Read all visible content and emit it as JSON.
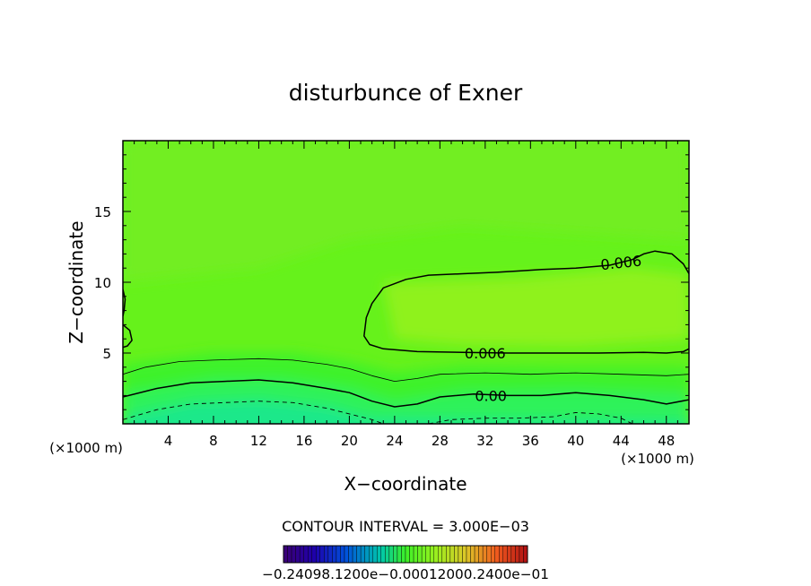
{
  "chart_data": {
    "type": "contour",
    "title": "disturbunce of Exner",
    "xlabel": "X−coordinate",
    "ylabel": "Z−coordinate",
    "x_unit_left": "(×1000 m)",
    "x_unit_right": "(×1000 m)",
    "xlim": [
      0,
      50
    ],
    "ylim": [
      0,
      20
    ],
    "x_ticks": [
      4,
      8,
      12,
      16,
      20,
      24,
      28,
      32,
      36,
      40,
      44,
      48
    ],
    "y_ticks": [
      5,
      10,
      15
    ],
    "grid": false,
    "contour_interval_text": "CONTOUR INTERVAL = 3.000E−03",
    "contour_interval": 0.003,
    "contour_labels": [
      {
        "text": "0.006",
        "x": 44.0,
        "y": 11.4
      },
      {
        "text": "0.006",
        "x": 32.0,
        "y": 5.0
      },
      {
        "text": "0.00",
        "x": 32.5,
        "y": 2.0
      }
    ],
    "contours": [
      {
        "level": 0.006,
        "style": "solid",
        "points": [
          [
            50,
            10.6
          ],
          [
            49.5,
            11.3
          ],
          [
            48.5,
            12.0
          ],
          [
            47,
            12.2
          ],
          [
            46,
            12.0
          ],
          [
            45,
            11.6
          ],
          [
            43,
            11.2
          ],
          [
            40,
            11.0
          ],
          [
            37,
            10.9
          ],
          [
            35,
            10.8
          ],
          [
            33,
            10.7
          ],
          [
            30,
            10.6
          ],
          [
            27,
            10.5
          ],
          [
            25,
            10.2
          ],
          [
            23,
            9.6
          ],
          [
            22,
            8.5
          ],
          [
            21.5,
            7.5
          ],
          [
            21.3,
            6.2
          ],
          [
            21.8,
            5.6
          ],
          [
            23,
            5.3
          ],
          [
            26,
            5.1
          ],
          [
            30,
            5.05
          ],
          [
            34,
            5.0
          ],
          [
            38,
            5.0
          ],
          [
            42,
            5.0
          ],
          [
            46,
            5.05
          ],
          [
            48,
            5.0
          ],
          [
            49.5,
            5.1
          ],
          [
            50,
            5.3
          ]
        ]
      },
      {
        "level": 0.006,
        "style": "solid",
        "points": [
          [
            0,
            9.5
          ],
          [
            0.2,
            8.8
          ],
          [
            0.1,
            8.0
          ],
          [
            0,
            7.6
          ]
        ]
      },
      {
        "level": 0.006,
        "style": "solid",
        "points": [
          [
            0,
            7.0
          ],
          [
            0.6,
            6.6
          ],
          [
            0.8,
            5.9
          ],
          [
            0.4,
            5.5
          ],
          [
            0,
            5.4
          ]
        ]
      },
      {
        "level": 0.003,
        "style": "thin",
        "points": [
          [
            0,
            3.5
          ],
          [
            2,
            4.0
          ],
          [
            5,
            4.4
          ],
          [
            8,
            4.5
          ],
          [
            12,
            4.6
          ],
          [
            15,
            4.5
          ],
          [
            18,
            4.2
          ],
          [
            20,
            3.9
          ],
          [
            22,
            3.4
          ],
          [
            24,
            3.0
          ],
          [
            26,
            3.2
          ],
          [
            28,
            3.5
          ],
          [
            32,
            3.6
          ],
          [
            36,
            3.5
          ],
          [
            40,
            3.6
          ],
          [
            44,
            3.5
          ],
          [
            48,
            3.4
          ],
          [
            50,
            3.5
          ]
        ]
      },
      {
        "level": 0.0,
        "style": "solid",
        "points": [
          [
            0,
            1.9
          ],
          [
            3,
            2.5
          ],
          [
            6,
            2.9
          ],
          [
            9,
            3.0
          ],
          [
            12,
            3.1
          ],
          [
            15,
            2.9
          ],
          [
            18,
            2.5
          ],
          [
            20,
            2.2
          ],
          [
            22,
            1.6
          ],
          [
            24,
            1.2
          ],
          [
            26,
            1.4
          ],
          [
            28,
            1.9
          ],
          [
            31,
            2.1
          ],
          [
            34,
            2.0
          ],
          [
            37,
            2.0
          ],
          [
            40,
            2.2
          ],
          [
            43,
            2.0
          ],
          [
            46,
            1.7
          ],
          [
            48,
            1.4
          ],
          [
            50,
            1.7
          ]
        ]
      },
      {
        "level": -0.003,
        "style": "dashed",
        "points": [
          [
            0,
            0.3
          ],
          [
            3,
            1.0
          ],
          [
            6,
            1.4
          ],
          [
            9,
            1.5
          ],
          [
            12,
            1.6
          ],
          [
            15,
            1.5
          ],
          [
            18,
            1.1
          ],
          [
            20,
            0.7
          ],
          [
            22,
            0.3
          ],
          [
            23,
            0
          ]
        ]
      },
      {
        "level": -0.003,
        "style": "dashed",
        "points": [
          [
            27,
            0
          ],
          [
            29,
            0.3
          ],
          [
            32,
            0.4
          ],
          [
            35,
            0.4
          ],
          [
            38,
            0.5
          ],
          [
            40,
            0.8
          ],
          [
            42,
            0.7
          ],
          [
            44,
            0.4
          ],
          [
            45,
            0
          ]
        ]
      }
    ],
    "colorbar": {
      "label_text": "−0.24098.1200e−0.00012000.2400e−01",
      "n_levels": 60,
      "range": [
        -0.024,
        0.024
      ]
    },
    "field_colors": {
      "background": "#66f21b",
      "upper": "#72ee21",
      "core": "#8ff21c",
      "low_green": "#3df22c",
      "lower": "#2ef25a",
      "bottom": "#1fe88a"
    }
  }
}
